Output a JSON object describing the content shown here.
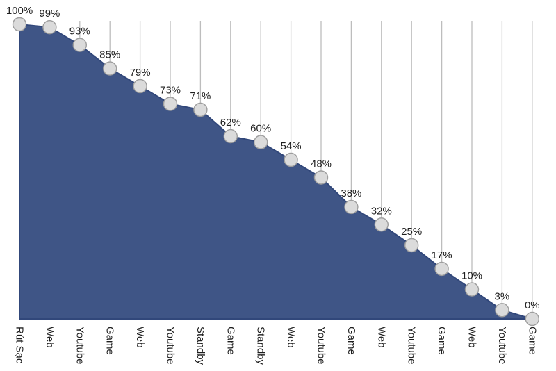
{
  "chart_data": {
    "type": "area",
    "title": "",
    "xlabel": "",
    "ylabel": "",
    "ylim": [
      0,
      100
    ],
    "legend": "none",
    "grid": "vertical drop-lines from plot top to each data point marker",
    "marker_shape": "circle",
    "categories": [
      "Rút Sạc",
      "Web",
      "Youtube",
      "Game",
      "Web",
      "Youtube",
      "Standby",
      "Game",
      "Standby",
      "Web",
      "Youtube",
      "Game",
      "Web",
      "Youtube",
      "Game",
      "Web",
      "Youtube",
      "Game"
    ],
    "values": [
      100,
      99,
      93,
      85,
      79,
      73,
      71,
      62,
      60,
      54,
      48,
      38,
      32,
      25,
      17,
      10,
      3,
      0
    ],
    "point_labels": [
      "100%",
      "99%",
      "93%",
      "85%",
      "79%",
      "73%",
      "71%",
      "62%",
      "60%",
      "54%",
      "48%",
      "38%",
      "32%",
      "25%",
      "17%",
      "10%",
      "3%",
      "0%"
    ]
  },
  "colors": {
    "background": "#FFFFFF",
    "area_fill": "#3F5586",
    "area_outline": "#31477A",
    "marker_fill": "#DBDBDB",
    "marker_stroke": "#9E9E9E",
    "gridline": "#BDBDBD",
    "text": "#1E1E1E"
  }
}
